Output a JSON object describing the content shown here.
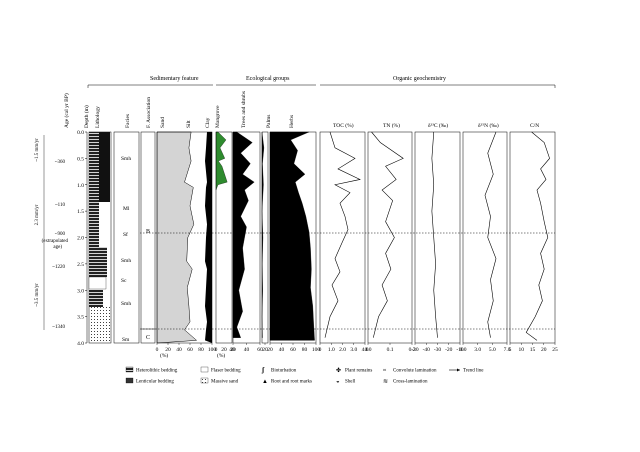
{
  "headers": {
    "sedimentary": "Sedimentary feature",
    "ecological": "Ecological groups",
    "organic": "Organic geochemistry"
  },
  "columns": {
    "age": "Age (cal yr BP)",
    "depth": "Depth (m)",
    "lithology": "Lithology",
    "facies": "Facies",
    "fassoc": "F. Association",
    "sand": "Sand",
    "silt": "Silt",
    "clay": "Clay",
    "mangrove": "Mangrove",
    "trees": "Trees and shrubs",
    "palms": "Palms",
    "herbs": "Herbs",
    "toc": "TOC (%)",
    "tn": "TN (%)",
    "d13c": "δ¹³C (‰)",
    "d15n": "δ¹⁵N (‰)",
    "cn": "C/N"
  },
  "ages": [
    "~360",
    "~110",
    "~900",
    "(extrapolated",
    "age)",
    "~1220",
    "~1340"
  ],
  "rates": [
    "~1.5 mm/yr",
    "2.3 mm/yr",
    "~3.5 mm/yr"
  ],
  "depth_ticks": [
    "0.0",
    "0.5",
    "1.0",
    "1.5",
    "2.0",
    "2.5",
    "3.0",
    "3.5",
    "4.0"
  ],
  "facies": [
    "Smh",
    "Ml",
    "Sf",
    "Smh",
    "Sc",
    "Smh",
    "Sm"
  ],
  "associations": [
    "B",
    "C"
  ],
  "axes": {
    "sand": {
      "ticks": [
        "0",
        "20",
        "40",
        "60",
        "80",
        "100"
      ],
      "unit": "(%)"
    },
    "eco": {
      "ticks": [
        "0",
        "20",
        "40",
        "60",
        "80",
        "100"
      ],
      "unit": "(%)"
    },
    "trees": [
      "20",
      "40",
      "60"
    ],
    "palms": [
      "20"
    ],
    "herbs": [
      "20",
      "40",
      "60",
      "80",
      "100"
    ],
    "toc": [
      "0",
      "1.0",
      "2.0",
      "3.0",
      "4.0"
    ],
    "tn": [
      "0.0",
      "0.1",
      "0.2"
    ],
    "d13c": [
      "-30",
      "-40",
      "-30",
      "-20",
      "-10"
    ],
    "d15n": [
      "0.0",
      "3.0",
      "5.0",
      "7.0"
    ],
    "cn": [
      "5",
      "10",
      "15",
      "20",
      "25"
    ]
  },
  "legend": [
    "Heterolithic bedding",
    "Flaser bedding",
    "Bioturbation",
    "Plant remains",
    "Convolute lamination",
    "Trend line",
    "Lenticular bedding",
    "Massive sand",
    "Root and root marks",
    "Shell",
    "Cross-lamination"
  ],
  "colors": {
    "mangrove": "#2e8b2e",
    "sand": "#d4d4d4",
    "fill": "#000000"
  },
  "chart_data": [
    {
      "type": "area",
      "title": "Sand",
      "xlabel": "(%)",
      "x": "percent",
      "y": "depth_m",
      "series": [
        {
          "values": [
            [
              62,
              0.0
            ],
            [
              58,
              0.3
            ],
            [
              62,
              0.55
            ],
            [
              50,
              0.95
            ],
            [
              66,
              1.05
            ],
            [
              60,
              1.4
            ],
            [
              67,
              1.75
            ],
            [
              56,
              2.0
            ],
            [
              54,
              2.45
            ],
            [
              64,
              2.6
            ],
            [
              55,
              2.95
            ],
            [
              58,
              3.3
            ],
            [
              60,
              3.6
            ],
            [
              50,
              3.75
            ],
            [
              72,
              3.95
            ]
          ]
        }
      ]
    },
    {
      "type": "area",
      "title": "Mangrove",
      "xlabel": "(%)",
      "x": "percent",
      "y": "depth_m",
      "series": [
        {
          "values": [
            [
              5,
              0.0
            ],
            [
              25,
              0.15
            ],
            [
              10,
              0.3
            ],
            [
              22,
              0.5
            ],
            [
              6,
              0.55
            ],
            [
              15,
              0.65
            ],
            [
              28,
              0.95
            ],
            [
              5,
              1.0
            ],
            [
              0,
              1.1
            ]
          ]
        }
      ]
    },
    {
      "type": "area",
      "title": "Trees and shrubs",
      "x": "percent",
      "y": "depth_m",
      "series": [
        {
          "values": [
            [
              10,
              0.0
            ],
            [
              50,
              0.2
            ],
            [
              20,
              0.4
            ],
            [
              45,
              0.6
            ],
            [
              25,
              0.8
            ],
            [
              55,
              0.95
            ],
            [
              30,
              1.1
            ],
            [
              40,
              1.3
            ],
            [
              20,
              1.6
            ],
            [
              35,
              1.8
            ],
            [
              25,
              2.2
            ],
            [
              30,
              2.6
            ],
            [
              15,
              3.0
            ],
            [
              25,
              3.4
            ],
            [
              10,
              3.7
            ],
            [
              20,
              3.9
            ]
          ]
        }
      ]
    },
    {
      "type": "area",
      "title": "Palms",
      "x": "percent",
      "y": "depth_m",
      "series": [
        {
          "values": [
            [
              0,
              0.0
            ],
            [
              8,
              0.3
            ],
            [
              2,
              0.6
            ],
            [
              6,
              1.0
            ],
            [
              0,
              1.5
            ],
            [
              4,
              2.0
            ],
            [
              1,
              2.5
            ],
            [
              3,
              3.0
            ],
            [
              0,
              3.5
            ],
            [
              2,
              3.9
            ]
          ]
        }
      ]
    },
    {
      "type": "area",
      "title": "Herbs",
      "x": "percent",
      "y": "depth_m",
      "series": [
        {
          "values": [
            [
              85,
              0.0
            ],
            [
              45,
              0.15
            ],
            [
              60,
              0.35
            ],
            [
              52,
              0.6
            ],
            [
              76,
              0.8
            ],
            [
              55,
              0.95
            ],
            [
              62,
              1.15
            ],
            [
              70,
              1.35
            ],
            [
              78,
              1.6
            ],
            [
              85,
              1.9
            ],
            [
              88,
              2.2
            ],
            [
              90,
              2.6
            ],
            [
              88,
              2.95
            ],
            [
              93,
              3.3
            ],
            [
              95,
              3.65
            ],
            [
              97,
              3.95
            ]
          ]
        }
      ]
    },
    {
      "type": "line",
      "title": "TOC (%)",
      "x": "percent",
      "y": "depth_m",
      "series": [
        {
          "values": [
            [
              1.0,
              0.0
            ],
            [
              1.5,
              0.3
            ],
            [
              3.5,
              0.5
            ],
            [
              1.8,
              0.7
            ],
            [
              4.0,
              0.9
            ],
            [
              1.5,
              1.0
            ],
            [
              3.0,
              1.15
            ],
            [
              2.0,
              1.35
            ],
            [
              2.5,
              1.6
            ],
            [
              2.8,
              1.85
            ],
            [
              2.2,
              2.1
            ],
            [
              1.5,
              2.4
            ],
            [
              2.0,
              2.65
            ],
            [
              1.2,
              2.9
            ],
            [
              1.8,
              3.2
            ],
            [
              1.0,
              3.5
            ],
            [
              0.5,
              3.9
            ]
          ]
        }
      ]
    },
    {
      "type": "line",
      "title": "TN (%)",
      "x": "percent",
      "y": "depth_m",
      "series": [
        {
          "values": [
            [
              0.02,
              0.0
            ],
            [
              0.07,
              0.2
            ],
            [
              0.2,
              0.5
            ],
            [
              0.1,
              0.65
            ],
            [
              0.16,
              0.9
            ],
            [
              0.08,
              1.1
            ],
            [
              0.14,
              1.3
            ],
            [
              0.1,
              1.7
            ],
            [
              0.15,
              2.0
            ],
            [
              0.1,
              2.3
            ],
            [
              0.13,
              2.6
            ],
            [
              0.08,
              2.9
            ],
            [
              0.11,
              3.2
            ],
            [
              0.06,
              3.5
            ],
            [
              0.03,
              3.9
            ]
          ]
        }
      ]
    },
    {
      "type": "line",
      "title": "δ¹³C (‰)",
      "x": "permil",
      "y": "depth_m",
      "series": [
        {
          "values": [
            [
              -22,
              0.0
            ],
            [
              -23,
              0.5
            ],
            [
              -22,
              1.0
            ],
            [
              -23,
              1.5
            ],
            [
              -22,
              2.0
            ],
            [
              -21,
              2.5
            ],
            [
              -22,
              3.0
            ],
            [
              -21,
              3.5
            ],
            [
              -20,
              3.9
            ]
          ]
        }
      ]
    },
    {
      "type": "line",
      "title": "δ¹⁵N (‰)",
      "x": "permil",
      "y": "depth_m",
      "series": [
        {
          "values": [
            [
              6.0,
              0.0
            ],
            [
              4.5,
              0.4
            ],
            [
              5.5,
              0.8
            ],
            [
              4.0,
              1.2
            ],
            [
              5.0,
              1.6
            ],
            [
              4.5,
              2.0
            ],
            [
              6.0,
              2.4
            ],
            [
              5.0,
              2.8
            ],
            [
              5.5,
              3.2
            ],
            [
              4.5,
              3.6
            ],
            [
              5.0,
              3.9
            ]
          ]
        }
      ]
    },
    {
      "type": "line",
      "title": "C/N",
      "x": "ratio",
      "y": "depth_m",
      "series": [
        {
          "values": [
            [
              15,
              0.0
            ],
            [
              22,
              0.2
            ],
            [
              25,
              0.5
            ],
            [
              20,
              0.7
            ],
            [
              23,
              0.9
            ],
            [
              18,
              1.1
            ],
            [
              20,
              1.35
            ],
            [
              22,
              1.7
            ],
            [
              24,
              2.0
            ],
            [
              20,
              2.3
            ],
            [
              22,
              2.6
            ],
            [
              19,
              2.9
            ],
            [
              21,
              3.2
            ],
            [
              17,
              3.5
            ],
            [
              12,
              3.8
            ],
            [
              18,
              3.95
            ]
          ]
        }
      ]
    }
  ]
}
